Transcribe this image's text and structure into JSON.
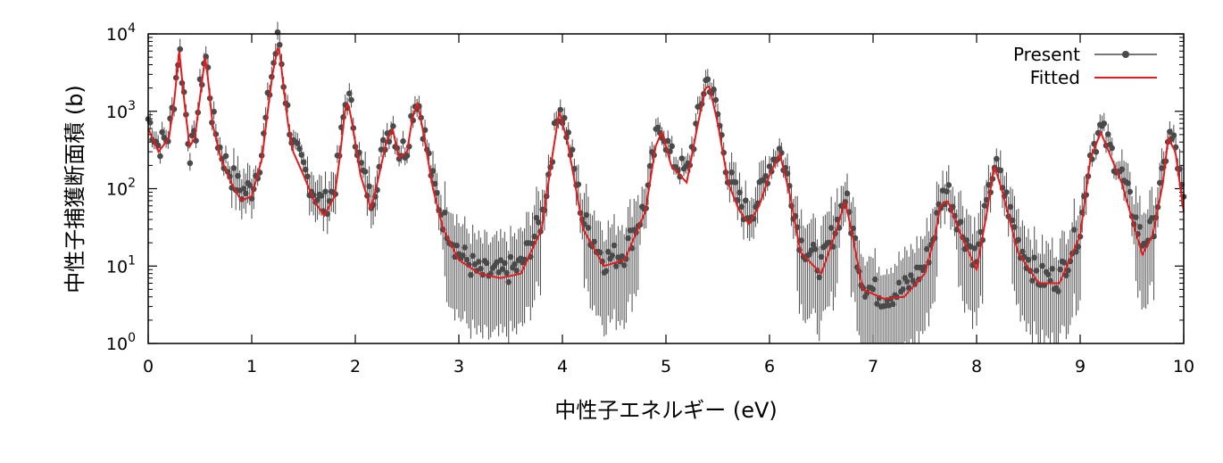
{
  "chart_data": {
    "type": "line",
    "xlabel": "中性子エネルギー (eV)",
    "ylabel": "中性子捕獲断面積 (b)",
    "x_ticks": [
      "0",
      "1",
      "2",
      "3",
      "4",
      "5",
      "6",
      "7",
      "8",
      "9",
      "10"
    ],
    "y_ticks": [
      {
        "base": "10",
        "exp": "0"
      },
      {
        "base": "10",
        "exp": "1"
      },
      {
        "base": "10",
        "exp": "2"
      },
      {
        "base": "10",
        "exp": "3"
      },
      {
        "base": "10",
        "exp": "4"
      }
    ],
    "xlim": [
      0,
      10
    ],
    "ylim": [
      1,
      10000
    ],
    "yscale": "log",
    "legend": {
      "placement": "top-right",
      "items": [
        "Present",
        "Fitted"
      ]
    },
    "colors": {
      "present": "#4a4a4a",
      "fitted": "#e41a1c"
    },
    "series": [
      {
        "name": "Present",
        "style": "points-with-errorbars",
        "x": [
          0.0,
          0.1,
          0.2,
          0.25,
          0.3,
          0.35,
          0.4,
          0.45,
          0.5,
          0.55,
          0.58,
          0.62,
          0.7,
          0.8,
          0.9,
          1.0,
          1.1,
          1.15,
          1.2,
          1.25,
          1.27,
          1.3,
          1.35,
          1.4,
          1.5,
          1.6,
          1.7,
          1.8,
          1.85,
          1.9,
          1.93,
          1.97,
          2.05,
          2.15,
          2.2,
          2.3,
          2.36,
          2.42,
          2.5,
          2.55,
          2.6,
          2.65,
          2.75,
          2.85,
          3.0,
          3.2,
          3.4,
          3.6,
          3.8,
          3.9,
          3.97,
          4.05,
          4.2,
          4.4,
          4.6,
          4.8,
          4.9,
          4.96,
          5.05,
          5.2,
          5.3,
          5.38,
          5.42,
          5.5,
          5.6,
          5.7,
          5.8,
          5.9,
          6.0,
          6.1,
          6.2,
          6.3,
          6.5,
          6.65,
          6.73,
          6.8,
          6.9,
          7.1,
          7.3,
          7.5,
          7.6,
          7.65,
          7.72,
          7.85,
          8.0,
          8.1,
          8.17,
          8.25,
          8.4,
          8.6,
          8.8,
          9.0,
          9.1,
          9.2,
          9.4,
          9.6,
          9.7,
          9.8,
          9.85,
          9.92,
          10.0
        ],
        "y": [
          800,
          350,
          500,
          1500,
          7000,
          1500,
          300,
          400,
          1800,
          5800,
          3000,
          800,
          300,
          150,
          90,
          100,
          300,
          1100,
          3500,
          8000,
          7500,
          3000,
          900,
          350,
          180,
          90,
          60,
          100,
          300,
          1200,
          1600,
          900,
          200,
          70,
          120,
          500,
          700,
          300,
          350,
          1000,
          1500,
          700,
          120,
          40,
          15,
          8,
          8,
          10,
          40,
          300,
          1300,
          500,
          40,
          12,
          15,
          60,
          400,
          650,
          250,
          150,
          700,
          2400,
          2500,
          900,
          150,
          70,
          45,
          80,
          200,
          330,
          100,
          20,
          10,
          35,
          80,
          30,
          6,
          4,
          5,
          10,
          30,
          70,
          100,
          30,
          12,
          60,
          210,
          110,
          20,
          7,
          7,
          30,
          300,
          600,
          150,
          20,
          30,
          150,
          500,
          350,
          60
        ]
      },
      {
        "name": "Fitted",
        "style": "line",
        "x": [
          0.0,
          0.1,
          0.2,
          0.25,
          0.3,
          0.35,
          0.4,
          0.45,
          0.5,
          0.55,
          0.58,
          0.62,
          0.7,
          0.8,
          0.9,
          1.0,
          1.1,
          1.15,
          1.2,
          1.25,
          1.27,
          1.3,
          1.35,
          1.4,
          1.5,
          1.6,
          1.7,
          1.8,
          1.85,
          1.9,
          1.93,
          1.97,
          2.05,
          2.15,
          2.2,
          2.3,
          2.36,
          2.42,
          2.5,
          2.55,
          2.6,
          2.65,
          2.75,
          2.85,
          3.0,
          3.2,
          3.4,
          3.6,
          3.8,
          3.9,
          3.97,
          4.05,
          4.2,
          4.4,
          4.6,
          4.8,
          4.9,
          4.96,
          5.05,
          5.2,
          5.3,
          5.38,
          5.42,
          5.5,
          5.6,
          5.7,
          5.8,
          5.9,
          6.0,
          6.1,
          6.2,
          6.3,
          6.5,
          6.65,
          6.73,
          6.8,
          6.9,
          7.1,
          7.3,
          7.5,
          7.6,
          7.65,
          7.72,
          7.85,
          8.0,
          8.1,
          8.17,
          8.25,
          8.4,
          8.6,
          8.8,
          9.0,
          9.1,
          9.2,
          9.4,
          9.6,
          9.7,
          9.8,
          9.85,
          9.92,
          10.0
        ],
        "y": [
          600,
          300,
          450,
          1300,
          6000,
          1300,
          350,
          450,
          1500,
          5000,
          2500,
          700,
          250,
          120,
          70,
          80,
          250,
          900,
          3000,
          6500,
          6000,
          2500,
          700,
          300,
          150,
          70,
          45,
          80,
          250,
          1000,
          1300,
          700,
          150,
          55,
          100,
          400,
          600,
          250,
          300,
          800,
          1300,
          600,
          100,
          30,
          12,
          8,
          7,
          8,
          30,
          250,
          1000,
          400,
          30,
          10,
          12,
          50,
          350,
          550,
          200,
          120,
          600,
          2000,
          2100,
          700,
          120,
          55,
          35,
          60,
          150,
          280,
          80,
          15,
          8,
          30,
          70,
          25,
          5,
          3.8,
          4,
          8,
          25,
          60,
          70,
          25,
          9,
          50,
          200,
          90,
          15,
          6,
          6,
          25,
          250,
          530,
          120,
          14,
          25,
          120,
          450,
          300,
          50
        ]
      }
    ]
  }
}
